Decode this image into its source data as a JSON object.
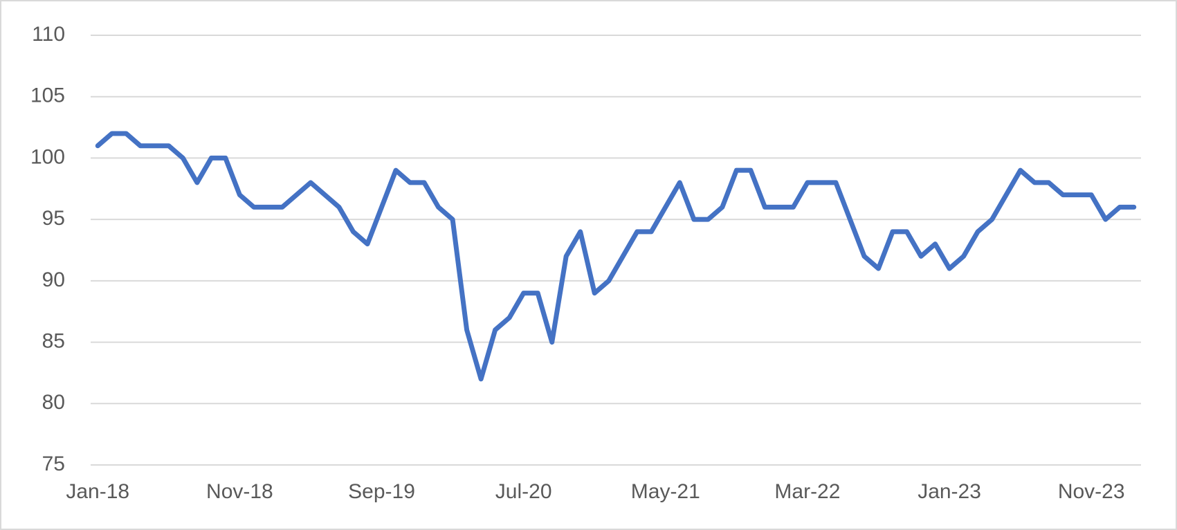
{
  "chart_data": {
    "type": "line",
    "categories": [
      "Jan-18",
      null,
      null,
      null,
      null,
      null,
      null,
      null,
      null,
      null,
      "Nov-18",
      null,
      null,
      null,
      null,
      null,
      null,
      null,
      null,
      null,
      "Sep-19",
      null,
      null,
      null,
      null,
      null,
      null,
      null,
      null,
      null,
      "Jul-20",
      null,
      null,
      null,
      null,
      null,
      null,
      null,
      null,
      null,
      "May-21",
      null,
      null,
      null,
      null,
      null,
      null,
      null,
      null,
      null,
      "Mar-22",
      null,
      null,
      null,
      null,
      null,
      null,
      null,
      null,
      null,
      "Jan-23",
      null,
      null,
      null,
      null,
      null,
      null,
      null,
      null,
      null,
      "Nov-23",
      null,
      null,
      null
    ],
    "series": [
      {
        "color": "#4472c4",
        "values": [
          101,
          102,
          102,
          101,
          101,
          101,
          100,
          98,
          100,
          100,
          97,
          96,
          96,
          96,
          97,
          98,
          97,
          96,
          94,
          93,
          96,
          99,
          98,
          98,
          96,
          95,
          86,
          82,
          86,
          87,
          89,
          89,
          85,
          92,
          94,
          89,
          90,
          92,
          94,
          94,
          96,
          98,
          95,
          95,
          96,
          99,
          99,
          96,
          96,
          96,
          98,
          98,
          98,
          95,
          92,
          91,
          94,
          94,
          92,
          93,
          91,
          92,
          94,
          95,
          97,
          99,
          98,
          98,
          97,
          97,
          97,
          95,
          96,
          96
        ]
      }
    ],
    "ylim": [
      75,
      110
    ],
    "yticks": [
      75,
      80,
      85,
      90,
      95,
      100,
      105,
      110
    ],
    "grid": true
  }
}
